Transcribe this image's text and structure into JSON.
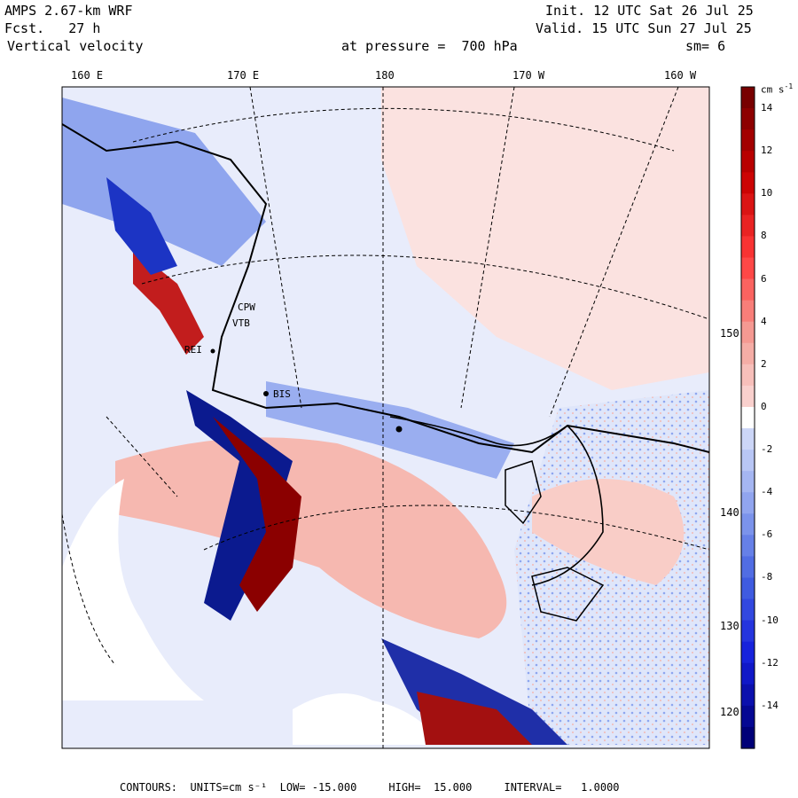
{
  "header": {
    "model": "AMPS 2.67-km WRF",
    "forecast": "Fcst.   27 h",
    "field": "Vertical velocity",
    "level": "at pressure =  700 hPa",
    "init": "Init. 12 UTC Sat 26 Jul 25",
    "valid": "Valid. 15 UTC Sun 27 Jul 25",
    "smooth": "sm= 6"
  },
  "map": {
    "lon_labels": [
      "160 E",
      "170 E",
      "180",
      "170 W",
      "160 W"
    ],
    "lat_labels": [
      "150 W",
      "140 W",
      "130 W",
      "120 W"
    ],
    "station_labels": [
      "CPW",
      "VTB",
      "REI",
      "BIS"
    ],
    "colors": {
      "strong_down": "#00008b",
      "down": "#4169e1",
      "weak_down": "#dfe6fa",
      "weak_up": "#fbe2e0",
      "up": "#ff3b3b",
      "strong_up": "#8b0000",
      "no_data": "#ffffff"
    }
  },
  "colorbar": {
    "unit": "cm s",
    "unit_exp": "-1",
    "ticks": [
      "14",
      "12",
      "10",
      "8",
      "6",
      "4",
      "2",
      "0",
      "-2",
      "-4",
      "-6",
      "-8",
      "-10",
      "-12",
      "-14"
    ]
  },
  "footer": {
    "text": "CONTOURS:  UNITS=cm s⁻¹  LOW= -15.000     HIGH=  15.000     INTERVAL=   1.0000"
  }
}
